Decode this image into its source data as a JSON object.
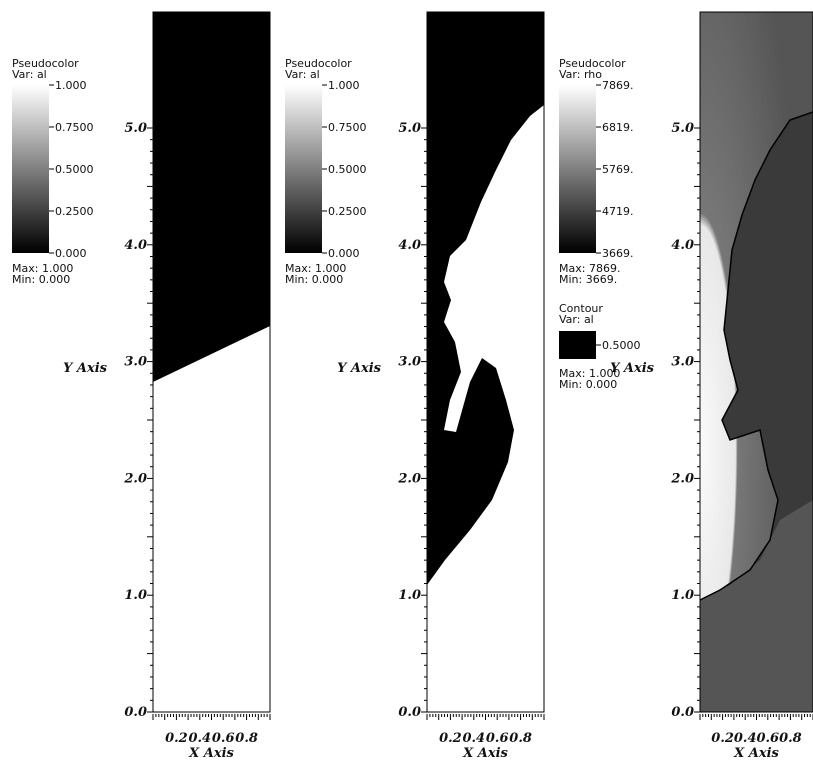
{
  "panels": [
    {
      "legend": {
        "title": "Pseudocolor",
        "var": "Var: al",
        "ticks": [
          "1.000",
          "0.7500",
          "0.5000",
          "0.2500",
          "0.000"
        ],
        "max": "Max: 1.000",
        "min": "Min: 0.000"
      },
      "y_ticks": [
        "0.0",
        "1.0",
        "2.0",
        "3.0",
        "4.0",
        "5.0"
      ],
      "y_title": "Y Axis",
      "x_ticks": [
        "0.2",
        "0.4",
        "0.6",
        "0.8"
      ],
      "x_title": "X Axis"
    },
    {
      "legend": {
        "title": "Pseudocolor",
        "var": "Var: al",
        "ticks": [
          "1.000",
          "0.7500",
          "0.5000",
          "0.2500",
          "0.000"
        ],
        "max": "Max: 1.000",
        "min": "Min: 0.000"
      },
      "y_ticks": [
        "0.0",
        "1.0",
        "2.0",
        "3.0",
        "4.0",
        "5.0"
      ],
      "y_title": "Y Axis",
      "x_ticks": [
        "0.2",
        "0.4",
        "0.6",
        "0.8"
      ],
      "x_title": "X Axis"
    },
    {
      "legend": {
        "title": "Pseudocolor",
        "var": "Var: rho",
        "ticks": [
          "7869.",
          "6819.",
          "5769.",
          "4719.",
          "3669."
        ],
        "max": "Max: 7869.",
        "min": "Min: 3669."
      },
      "contour": {
        "title": "Contour",
        "var": "Var: al",
        "level": "0.5000",
        "max": "Max: 1.000",
        "min": "Min: 0.000"
      },
      "y_ticks": [
        "0.0",
        "1.0",
        "2.0",
        "3.0",
        "4.0",
        "5.0"
      ],
      "y_title": "Y Axis",
      "x_ticks": [
        "0.2",
        "0.4",
        "0.6",
        "0.8"
      ],
      "x_title": "X Axis"
    }
  ]
}
